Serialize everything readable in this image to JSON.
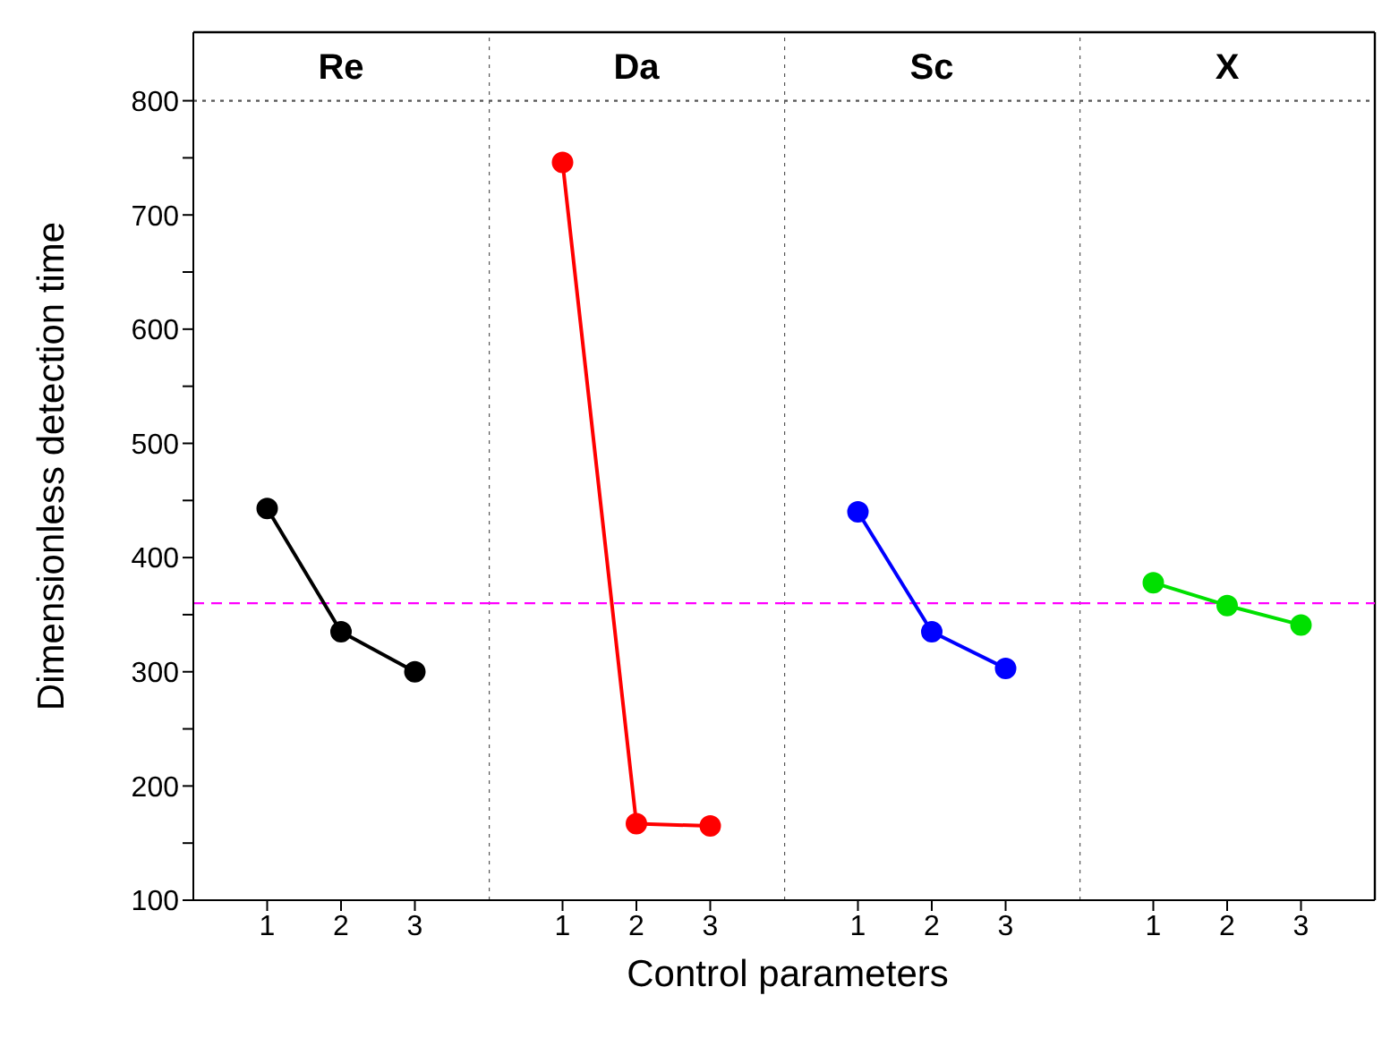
{
  "chart_data": [
    {
      "type": "line",
      "title": "Re",
      "xlabel": "Control parameters",
      "ylabel": "Dimensionless detection time",
      "xlim": [
        0,
        4
      ],
      "xticks": [
        1,
        2,
        3
      ],
      "ylim": [
        100,
        860
      ],
      "yticks": [
        100,
        {
          "value": 150,
          "label": null
        },
        200,
        {
          "value": 250,
          "label": null
        },
        300,
        {
          "value": 350,
          "label": null
        },
        400,
        {
          "value": 450,
          "label": null
        },
        500,
        {
          "value": 550,
          "label": null
        },
        600,
        {
          "value": 650,
          "label": null
        },
        700,
        {
          "value": 750,
          "label": null
        },
        800
      ],
      "series": [
        {
          "color": "#000000",
          "x": [
            1,
            2,
            3
          ],
          "values": [
            443,
            335,
            300
          ]
        }
      ],
      "ref_lines": [
        {
          "axis": "y",
          "value": 360,
          "color": "#ff00ff",
          "line_style": "dashed"
        },
        {
          "axis": "y",
          "value": 800,
          "color": "#555555",
          "line_style": "dotted"
        }
      ],
      "marker": "circle",
      "line_style": "solid"
    },
    {
      "type": "line",
      "title": "Da",
      "xlim": [
        0,
        4
      ],
      "xticks": [
        1,
        2,
        3
      ],
      "ylim": [
        100,
        860
      ],
      "tick_labels": "x",
      "series": [
        {
          "color": "#ff0000",
          "x": [
            1,
            2,
            3
          ],
          "values": [
            746,
            167,
            165
          ]
        }
      ],
      "ref_lines": [
        {
          "axis": "y",
          "value": 360,
          "color": "#ff00ff",
          "line_style": "dashed"
        },
        {
          "axis": "y",
          "value": 800,
          "color": "#555555",
          "line_style": "dotted"
        }
      ],
      "marker": "circle",
      "line_style": "solid"
    },
    {
      "type": "line",
      "title": "Sc",
      "xlim": [
        0,
        4
      ],
      "xticks": [
        1,
        2,
        3
      ],
      "ylim": [
        100,
        860
      ],
      "tick_labels": "x",
      "series": [
        {
          "color": "#0000ff",
          "x": [
            1,
            2,
            3
          ],
          "values": [
            440,
            335,
            303
          ]
        }
      ],
      "ref_lines": [
        {
          "axis": "y",
          "value": 360,
          "color": "#ff00ff",
          "line_style": "dashed"
        },
        {
          "axis": "y",
          "value": 800,
          "color": "#555555",
          "line_style": "dotted"
        }
      ],
      "marker": "circle",
      "line_style": "solid"
    },
    {
      "type": "line",
      "title": "X",
      "xlim": [
        0,
        4
      ],
      "xticks": [
        1,
        2,
        3
      ],
      "ylim": [
        100,
        860
      ],
      "tick_labels": "x",
      "series": [
        {
          "color": "#00e000",
          "x": [
            1,
            2,
            3
          ],
          "values": [
            378,
            358,
            341
          ]
        }
      ],
      "ref_lines": [
        {
          "axis": "y",
          "value": 360,
          "color": "#ff00ff",
          "line_style": "dashed"
        },
        {
          "axis": "y",
          "value": 800,
          "color": "#555555",
          "line_style": "dotted"
        }
      ],
      "marker": "circle",
      "line_style": "solid"
    }
  ]
}
